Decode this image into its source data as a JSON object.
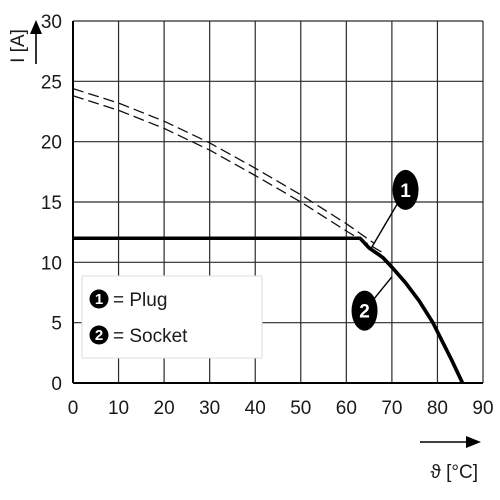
{
  "chart_data": {
    "type": "line",
    "xlabel": "ϑ [°C]",
    "ylabel": "I [A]",
    "xlim": [
      0,
      90
    ],
    "ylim": [
      0,
      30
    ],
    "x_ticks": [
      0,
      10,
      20,
      30,
      40,
      50,
      60,
      70,
      80,
      90
    ],
    "y_ticks": [
      0,
      5,
      10,
      15,
      20,
      25,
      30
    ],
    "grid": true,
    "legend": {
      "placement": "lower-left",
      "entries": [
        {
          "marker": "1",
          "text": "= Plug"
        },
        {
          "marker": "2",
          "text": "= Socket"
        }
      ]
    },
    "series": [
      {
        "marker": "1",
        "style": "solid-thick",
        "x": [
          0,
          63,
          65,
          68,
          70,
          73,
          76,
          79,
          81,
          83,
          84.5,
          85.5
        ],
        "y": [
          12,
          12,
          11.2,
          10.4,
          9.6,
          8.3,
          6.8,
          5.0,
          3.5,
          2.0,
          0.8,
          0
        ]
      },
      {
        "marker": "2",
        "style": "solid-thick",
        "x": [
          0,
          63,
          65,
          68,
          70,
          73,
          76,
          79,
          81,
          83,
          84.5,
          85.5
        ],
        "y": [
          12,
          12,
          11.2,
          10.4,
          9.6,
          8.3,
          6.8,
          5.0,
          3.5,
          2.0,
          0.8,
          0
        ]
      },
      {
        "marker": "1",
        "style": "dashed",
        "x": [
          0,
          10,
          20,
          30,
          40,
          50,
          60,
          66
        ],
        "y": [
          24.4,
          23.2,
          21.7,
          19.9,
          17.8,
          15.6,
          13.2,
          11.6
        ]
      },
      {
        "marker": "2",
        "style": "dashed",
        "x": [
          0,
          10,
          20,
          30,
          40,
          50,
          60,
          68
        ],
        "y": [
          23.8,
          22.6,
          21.1,
          19.3,
          17.2,
          15.0,
          12.6,
          10.8
        ]
      }
    ],
    "callouts": [
      {
        "marker": "1",
        "x": 73,
        "y": 16
      },
      {
        "marker": "2",
        "x": 64,
        "y": 6
      }
    ]
  }
}
